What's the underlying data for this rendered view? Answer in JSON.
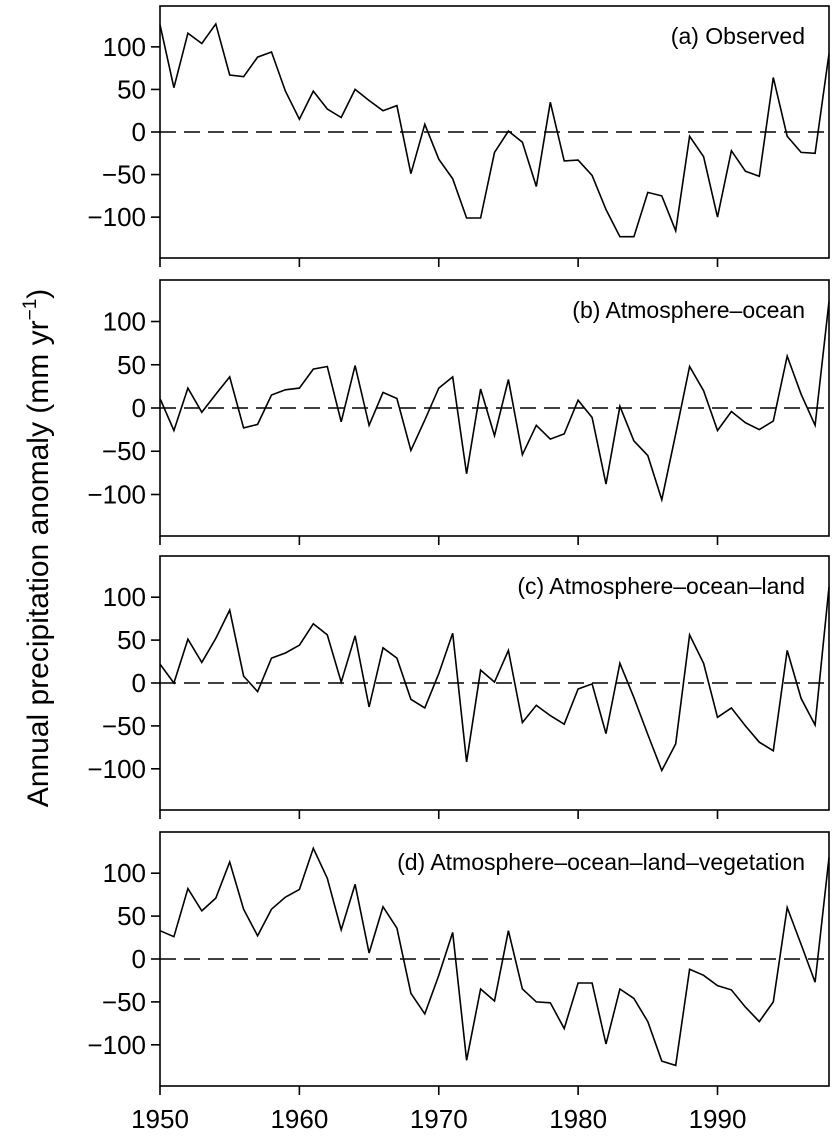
{
  "ylabel_text": "Annual precipitation anomaly (mm yr",
  "ylabel_sup": "−1",
  "ylabel_close": ")",
  "xticks": [
    "1950",
    "1960",
    "1970",
    "1980",
    "1990"
  ],
  "yticks": [
    "100",
    "50",
    "0",
    "−50",
    "−100"
  ],
  "colors": {
    "line": "#000000",
    "axis": "#000000",
    "zero_line": "#000000",
    "background": "#ffffff"
  },
  "chart_data": [
    {
      "type": "line",
      "title": "(a) Observed",
      "xlim": [
        1950,
        1998
      ],
      "ylim": [
        -148,
        148
      ],
      "zero_line": "dashed",
      "years": [
        1950,
        1951,
        1952,
        1953,
        1954,
        1955,
        1956,
        1957,
        1958,
        1959,
        1960,
        1961,
        1962,
        1963,
        1964,
        1965,
        1966,
        1967,
        1968,
        1969,
        1970,
        1971,
        1972,
        1973,
        1974,
        1975,
        1976,
        1977,
        1978,
        1979,
        1980,
        1981,
        1982,
        1983,
        1984,
        1985,
        1986,
        1987,
        1988,
        1989,
        1990,
        1991,
        1992,
        1993,
        1994,
        1995,
        1996,
        1997,
        1998
      ],
      "values": [
        126,
        52,
        116,
        104,
        127,
        67,
        65,
        88,
        94,
        48,
        15,
        48,
        27,
        17,
        50,
        37,
        25,
        31,
        -49,
        9,
        -32,
        -55,
        -101,
        -101,
        -24,
        1,
        -12,
        -64,
        35,
        -34,
        -33,
        -51,
        -91,
        -123,
        -123,
        -71,
        -75,
        -116,
        -5,
        -29,
        -100,
        -22,
        -46,
        -52,
        64,
        -5,
        -24,
        -25,
        92
      ]
    },
    {
      "type": "line",
      "title": "(b) Atmosphere–ocean",
      "xlim": [
        1950,
        1998
      ],
      "ylim": [
        -148,
        148
      ],
      "zero_line": "dashed",
      "years": [
        1950,
        1951,
        1952,
        1953,
        1954,
        1955,
        1956,
        1957,
        1958,
        1959,
        1960,
        1961,
        1962,
        1963,
        1964,
        1965,
        1966,
        1967,
        1968,
        1969,
        1970,
        1971,
        1972,
        1973,
        1974,
        1975,
        1976,
        1977,
        1978,
        1979,
        1980,
        1981,
        1982,
        1983,
        1984,
        1985,
        1986,
        1987,
        1988,
        1989,
        1990,
        1991,
        1992,
        1993,
        1994,
        1995,
        1996,
        1997,
        1998
      ],
      "values": [
        11,
        -26,
        23,
        -5,
        16,
        36,
        -23,
        -19,
        15,
        21,
        23,
        45,
        48,
        -16,
        49,
        -20,
        18,
        11,
        -49,
        -14,
        23,
        36,
        -76,
        22,
        -32,
        33,
        -54,
        -20,
        -36,
        -30,
        9,
        -11,
        -88,
        2,
        -38,
        -55,
        -106,
        -30,
        48,
        20,
        -26,
        -4,
        -17,
        -25,
        -15,
        60,
        16,
        -20,
        123
      ]
    },
    {
      "type": "line",
      "title": "(c) Atmosphere–ocean–land",
      "xlim": [
        1950,
        1998
      ],
      "ylim": [
        -148,
        148
      ],
      "zero_line": "dashed",
      "years": [
        1950,
        1951,
        1952,
        1953,
        1954,
        1955,
        1956,
        1957,
        1958,
        1959,
        1960,
        1961,
        1962,
        1963,
        1964,
        1965,
        1966,
        1967,
        1968,
        1969,
        1970,
        1971,
        1972,
        1973,
        1974,
        1975,
        1976,
        1977,
        1978,
        1979,
        1980,
        1981,
        1982,
        1983,
        1984,
        1985,
        1986,
        1987,
        1988,
        1989,
        1990,
        1991,
        1992,
        1993,
        1994,
        1995,
        1996,
        1997,
        1998
      ],
      "values": [
        22,
        0,
        51,
        24,
        52,
        85,
        8,
        -10,
        29,
        35,
        44,
        69,
        56,
        1,
        55,
        -28,
        41,
        29,
        -19,
        -29,
        11,
        58,
        -92,
        15,
        1,
        38,
        -46,
        -26,
        -38,
        -48,
        -7,
        -1,
        -59,
        23,
        -17,
        -60,
        -102,
        -71,
        56,
        23,
        -40,
        -29,
        -50,
        -69,
        -79,
        38,
        -18,
        -49,
        112
      ]
    },
    {
      "type": "line",
      "title": "(d) Atmosphere–ocean–land–vegetation",
      "xlim": [
        1950,
        1998
      ],
      "ylim": [
        -148,
        148
      ],
      "zero_line": "dashed",
      "years": [
        1950,
        1951,
        1952,
        1953,
        1954,
        1955,
        1956,
        1957,
        1958,
        1959,
        1960,
        1961,
        1962,
        1963,
        1964,
        1965,
        1966,
        1967,
        1968,
        1969,
        1970,
        1971,
        1972,
        1973,
        1974,
        1975,
        1976,
        1977,
        1978,
        1979,
        1980,
        1981,
        1982,
        1983,
        1984,
        1985,
        1986,
        1987,
        1988,
        1989,
        1990,
        1991,
        1992,
        1993,
        1994,
        1995,
        1996,
        1997,
        1998
      ],
      "values": [
        33,
        26,
        82,
        56,
        71,
        113,
        58,
        27,
        58,
        72,
        81,
        129,
        94,
        34,
        87,
        7,
        61,
        36,
        -40,
        -64,
        -19,
        31,
        -118,
        -35,
        -49,
        33,
        -35,
        -50,
        -51,
        -81,
        -28,
        -28,
        -99,
        -35,
        -46,
        -73,
        -119,
        -124,
        -12,
        -19,
        -31,
        -36,
        -56,
        -73,
        -50,
        60,
        17,
        -27,
        118
      ]
    }
  ]
}
